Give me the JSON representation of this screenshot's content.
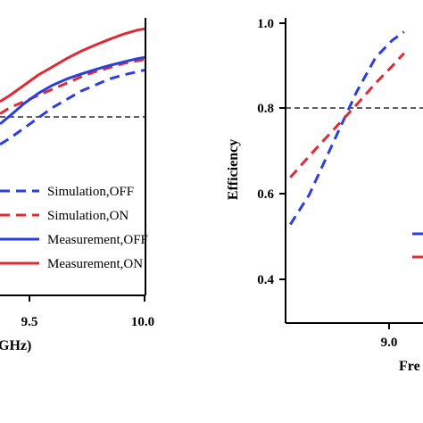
{
  "chart_data": [
    {
      "type": "line",
      "title": "",
      "xlabel": "GHz)",
      "ylabel": "",
      "xlim": [
        8.98,
        10.0
      ],
      "ylim": [
        0.32,
        1.0
      ],
      "x_ticks": [
        "9.5",
        "10.0"
      ],
      "grid": false,
      "reference_line": {
        "y": 0.8,
        "style": "dashed"
      },
      "legend": {
        "position": "bottom-right"
      },
      "series": [
        {
          "name": "Simulation,OFF",
          "color": "#2b3fe0",
          "dash": "dashed",
          "x": [
            8.98,
            9.05,
            9.15,
            9.25,
            9.35,
            9.45,
            9.55,
            9.65,
            9.75,
            9.85,
            9.95,
            10.0
          ],
          "y": [
            0.69,
            0.705,
            0.73,
            0.755,
            0.78,
            0.8,
            0.82,
            0.835,
            0.85,
            0.86,
            0.868,
            0.872
          ]
        },
        {
          "name": "Simulation,ON",
          "color": "#e02b36",
          "dash": "dashed",
          "x": [
            8.98,
            9.05,
            9.15,
            9.25,
            9.35,
            9.45,
            9.55,
            9.65,
            9.75,
            9.85,
            9.95,
            10.0
          ],
          "y": [
            0.765,
            0.78,
            0.795,
            0.81,
            0.825,
            0.84,
            0.855,
            0.868,
            0.878,
            0.888,
            0.895,
            0.898
          ]
        },
        {
          "name": "Measurement,OFF",
          "color": "#2b3fe0",
          "dash": "solid",
          "x": [
            8.98,
            9.05,
            9.15,
            9.25,
            9.35,
            9.45,
            9.55,
            9.65,
            9.75,
            9.85,
            9.95,
            10.0
          ],
          "y": [
            0.74,
            0.76,
            0.79,
            0.815,
            0.835,
            0.85,
            0.862,
            0.873,
            0.883,
            0.892,
            0.9,
            0.903
          ]
        },
        {
          "name": "Measurement,ON",
          "color": "#e02b36",
          "dash": "solid",
          "x": [
            8.98,
            9.05,
            9.15,
            9.25,
            9.35,
            9.45,
            9.55,
            9.65,
            9.75,
            9.85,
            9.95,
            10.0
          ],
          "y": [
            0.795,
            0.81,
            0.835,
            0.86,
            0.88,
            0.9,
            0.918,
            0.933,
            0.947,
            0.96,
            0.97,
            0.973
          ]
        }
      ]
    },
    {
      "type": "line",
      "title": "",
      "xlabel": "Fre",
      "ylabel": "Efficiency",
      "xlim": [
        8.7,
        9.28
      ],
      "ylim": [
        0.3,
        1.0
      ],
      "x_ticks": [
        "9.0"
      ],
      "y_ticks": [
        "0.4",
        "0.6",
        "0.8",
        "1.0"
      ],
      "grid": false,
      "reference_line": {
        "y": 0.8,
        "style": "dashed"
      },
      "series": [
        {
          "color": "#2b3fe0",
          "dash": "dashed",
          "x": [
            8.72,
            8.8,
            8.9,
            9.0,
            9.08,
            9.15,
            9.2
          ],
          "y": [
            0.53,
            0.6,
            0.72,
            0.84,
            0.92,
            0.96,
            0.98
          ]
        },
        {
          "color": "#e02b36",
          "dash": "dashed",
          "x": [
            8.72,
            8.8,
            8.9,
            9.0,
            9.08,
            9.15,
            9.2
          ],
          "y": [
            0.64,
            0.69,
            0.75,
            0.81,
            0.86,
            0.9,
            0.93
          ]
        }
      ],
      "legend_swatches": [
        {
          "color": "#2b3fe0"
        },
        {
          "color": "#e02b36"
        }
      ]
    }
  ]
}
